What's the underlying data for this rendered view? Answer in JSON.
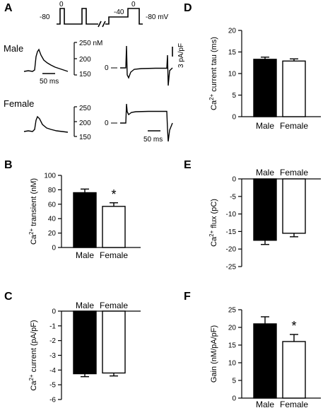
{
  "panel_labels": {
    "A": "A",
    "B": "B",
    "C": "C",
    "D": "D",
    "E": "E",
    "F": "F"
  },
  "protocol": {
    "holding": "-80",
    "step1": "0",
    "prepulse": "-40",
    "step2": "0",
    "end": "-80 mV"
  },
  "traces": {
    "male_label": "Male",
    "female_label": "Female",
    "transient_unit": "250 nM",
    "male_transient_ticks": [
      "250 nM",
      "200",
      "150"
    ],
    "female_transient_ticks": [
      "250",
      "200",
      "150"
    ],
    "current_zero": "0",
    "current_scale": "3 pA/pF",
    "time_scale": "50 ms"
  },
  "chart_data": [
    {
      "id": "B",
      "type": "bar",
      "categories": [
        "Male",
        "Female"
      ],
      "values": [
        76,
        57
      ],
      "errors": [
        5,
        5
      ],
      "colors": [
        "#000000",
        "#ffffff"
      ],
      "ylabel_main": "Ca",
      "ylabel_sup": "2+",
      "ylabel_rest": " transient (nM)",
      "ylim": [
        0,
        100
      ],
      "yticks": [
        0,
        20,
        40,
        60,
        80,
        100
      ],
      "significance": "*",
      "grid": false
    },
    {
      "id": "C",
      "type": "bar",
      "categories": [
        "Male",
        "Female"
      ],
      "values": [
        -4.25,
        -4.2
      ],
      "errors": [
        0.2,
        0.2
      ],
      "colors": [
        "#000000",
        "#ffffff"
      ],
      "ylabel_main": "Ca",
      "ylabel_sup": "2+",
      "ylabel_rest": " current (pA/pF)",
      "ylim": [
        -6,
        0
      ],
      "yticks": [
        0,
        -1,
        -2,
        -3,
        -4,
        -5,
        -6
      ],
      "category_position": "top",
      "grid": false
    },
    {
      "id": "D",
      "type": "bar",
      "categories": [
        "Male",
        "Female"
      ],
      "values": [
        13.3,
        12.9
      ],
      "errors": [
        0.5,
        0.5
      ],
      "colors": [
        "#000000",
        "#ffffff"
      ],
      "ylabel_main": "Ca",
      "ylabel_sup": "2+",
      "ylabel_rest": " current tau (ms)",
      "ylim": [
        0,
        20
      ],
      "yticks": [
        0,
        5,
        10,
        15,
        20
      ],
      "grid": false
    },
    {
      "id": "E",
      "type": "bar",
      "categories": [
        "Male",
        "Female"
      ],
      "values": [
        -17.5,
        -15.5
      ],
      "errors": [
        1.2,
        1.0
      ],
      "colors": [
        "#000000",
        "#ffffff"
      ],
      "ylabel_main": "Ca",
      "ylabel_sup": "2+",
      "ylabel_rest": " flux (pC)",
      "ylim": [
        -25,
        0
      ],
      "yticks": [
        0,
        -5,
        -10,
        -15,
        -20,
        -25
      ],
      "category_position": "top",
      "grid": false
    },
    {
      "id": "F",
      "type": "bar",
      "categories": [
        "Male",
        "Female"
      ],
      "values": [
        21,
        16
      ],
      "errors": [
        2,
        2
      ],
      "colors": [
        "#000000",
        "#ffffff"
      ],
      "ylabel_main": "Gain  (nM/pA/pF)",
      "ylabel_sup": "",
      "ylabel_rest": "",
      "ylim": [
        0,
        25
      ],
      "yticks": [
        0,
        5,
        10,
        15,
        20,
        25
      ],
      "significance": "*",
      "grid": false
    }
  ]
}
